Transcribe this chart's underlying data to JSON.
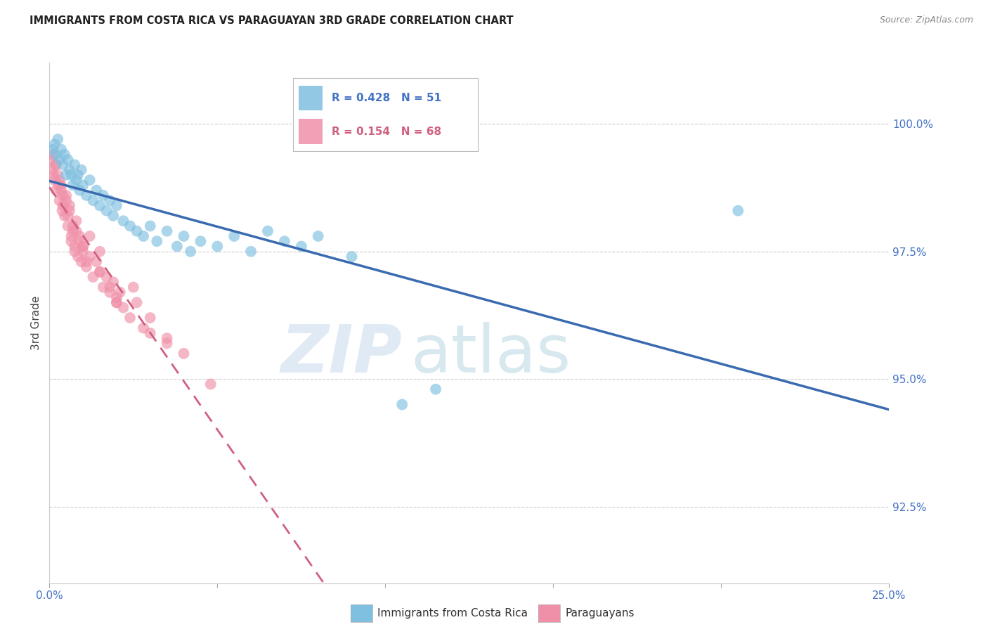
{
  "title": "IMMIGRANTS FROM COSTA RICA VS PARAGUAYAN 3RD GRADE CORRELATION CHART",
  "source": "Source: ZipAtlas.com",
  "xlabel_blue": "Immigrants from Costa Rica",
  "xlabel_pink": "Paraguayans",
  "ylabel": "3rd Grade",
  "xlim": [
    0.0,
    25.0
  ],
  "ylim": [
    91.0,
    101.2
  ],
  "yticks": [
    92.5,
    95.0,
    97.5,
    100.0
  ],
  "ytick_labels": [
    "92.5%",
    "95.0%",
    "97.5%",
    "100.0%"
  ],
  "xticks": [
    0.0,
    5.0,
    10.0,
    15.0,
    20.0,
    25.0
  ],
  "xtick_labels": [
    "0.0%",
    "",
    "",
    "",
    "",
    "25.0%"
  ],
  "R_blue": 0.428,
  "N_blue": 51,
  "R_pink": 0.154,
  "N_pink": 68,
  "blue_color": "#7fbfdf",
  "pink_color": "#f090a8",
  "blue_line_color": "#3a6ab0",
  "pink_line_color": "#d06080",
  "blue_x": [
    0.1,
    0.15,
    0.2,
    0.25,
    0.3,
    0.35,
    0.4,
    0.45,
    0.5,
    0.55,
    0.6,
    0.65,
    0.7,
    0.75,
    0.8,
    0.85,
    0.9,
    0.95,
    1.0,
    1.1,
    1.2,
    1.3,
    1.4,
    1.5,
    1.6,
    1.7,
    1.8,
    1.9,
    2.0,
    2.2,
    2.4,
    2.6,
    2.8,
    3.0,
    3.2,
    3.5,
    3.8,
    4.0,
    4.2,
    4.5,
    5.0,
    5.5,
    6.0,
    6.5,
    7.0,
    7.5,
    8.0,
    9.0,
    10.5,
    11.5,
    20.5
  ],
  "blue_y": [
    99.5,
    99.6,
    99.4,
    99.7,
    99.3,
    99.5,
    99.2,
    99.4,
    99.0,
    99.3,
    99.1,
    99.0,
    98.8,
    99.2,
    98.9,
    99.0,
    98.7,
    99.1,
    98.8,
    98.6,
    98.9,
    98.5,
    98.7,
    98.4,
    98.6,
    98.3,
    98.5,
    98.2,
    98.4,
    98.1,
    98.0,
    97.9,
    97.8,
    98.0,
    97.7,
    97.9,
    97.6,
    97.8,
    97.5,
    97.7,
    97.6,
    97.8,
    97.5,
    97.9,
    97.7,
    97.6,
    97.8,
    97.4,
    94.5,
    94.8,
    98.3
  ],
  "pink_x": [
    0.05,
    0.08,
    0.1,
    0.12,
    0.15,
    0.18,
    0.2,
    0.25,
    0.28,
    0.3,
    0.35,
    0.38,
    0.4,
    0.45,
    0.5,
    0.55,
    0.6,
    0.65,
    0.7,
    0.75,
    0.8,
    0.85,
    0.9,
    0.95,
    1.0,
    1.1,
    1.2,
    1.3,
    1.4,
    1.5,
    1.6,
    1.7,
    1.8,
    1.9,
    2.0,
    2.1,
    2.2,
    2.4,
    2.6,
    2.8,
    3.0,
    3.5,
    4.0,
    1.2,
    1.5,
    2.5,
    3.5,
    4.8,
    0.5,
    0.6,
    0.7,
    0.8,
    0.9,
    1.0,
    0.3,
    0.35,
    1.8,
    2.0,
    3.0,
    0.2,
    0.4,
    0.55,
    0.65,
    0.75,
    1.5,
    2.0,
    1.0,
    1.1
  ],
  "pink_y": [
    99.3,
    99.1,
    99.4,
    99.0,
    98.9,
    99.2,
    98.7,
    99.0,
    98.8,
    98.5,
    98.8,
    98.3,
    98.6,
    98.2,
    98.5,
    98.0,
    98.3,
    97.8,
    98.0,
    97.6,
    97.9,
    97.4,
    97.7,
    97.3,
    97.5,
    97.2,
    97.4,
    97.0,
    97.3,
    97.1,
    96.8,
    97.0,
    96.7,
    96.9,
    96.5,
    96.7,
    96.4,
    96.2,
    96.5,
    96.0,
    96.2,
    95.8,
    95.5,
    97.8,
    97.5,
    96.8,
    95.7,
    94.9,
    98.6,
    98.4,
    97.9,
    98.1,
    97.8,
    97.6,
    98.9,
    98.7,
    96.8,
    96.5,
    95.9,
    99.2,
    98.4,
    98.2,
    97.7,
    97.5,
    97.1,
    96.6,
    97.6,
    97.3
  ]
}
